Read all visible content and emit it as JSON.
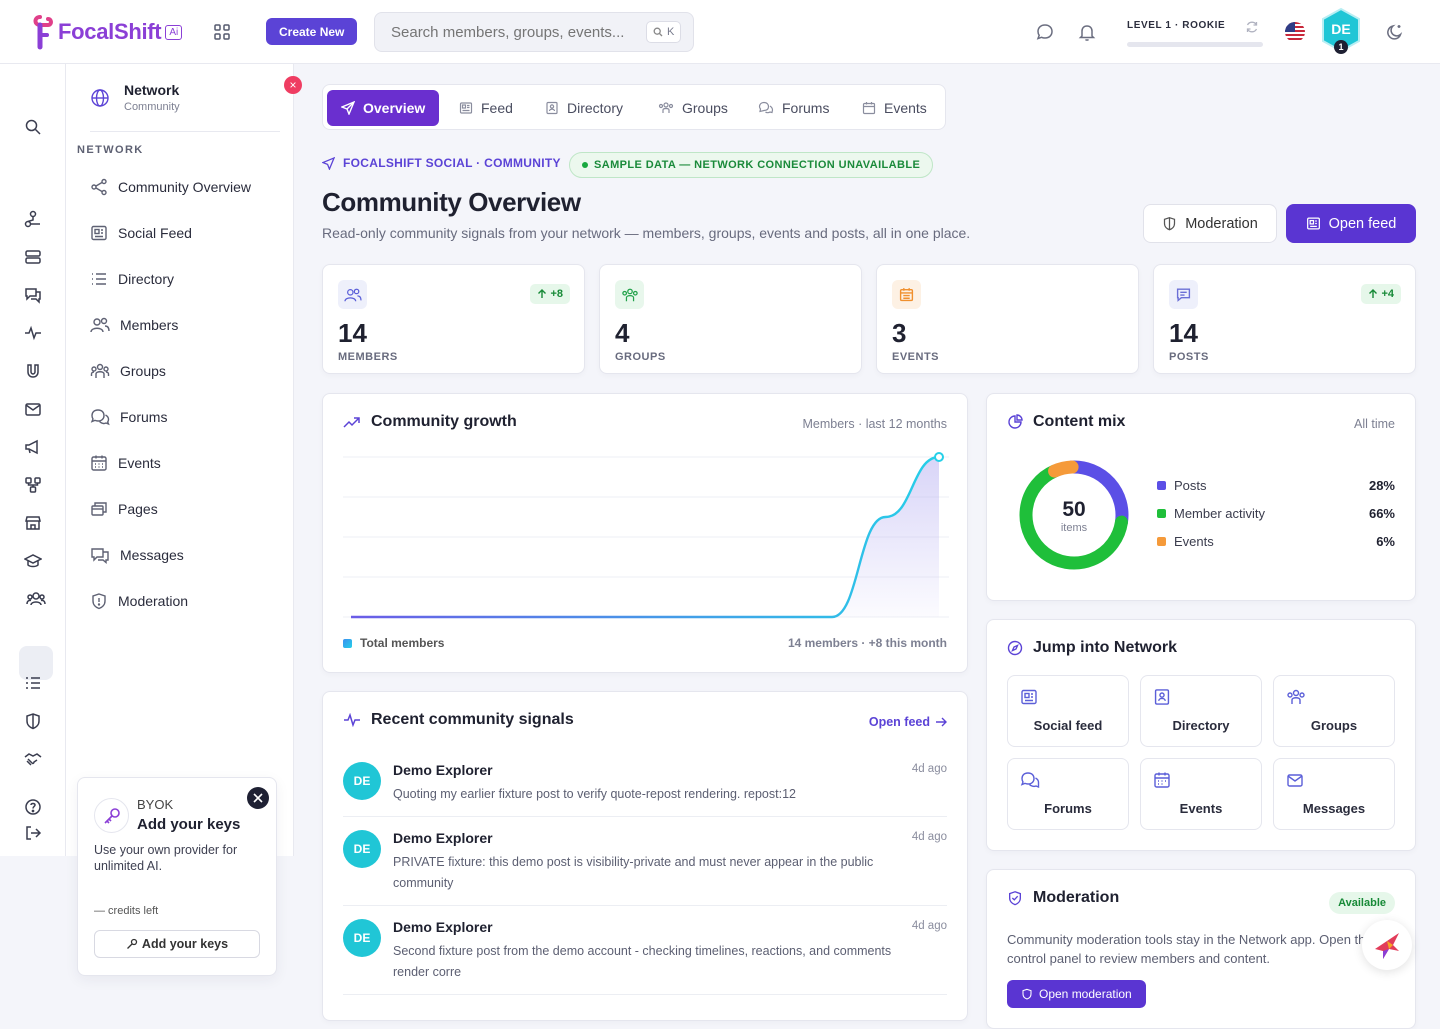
{
  "brand": {
    "name": "FocalShift",
    "badge": "Ai"
  },
  "topbar": {
    "create_label": "Create New",
    "search_placeholder": "Search members, groups, events...",
    "search_shortcut": "K",
    "level_label": "LEVEL 1 · ROOKIE",
    "level_progress": 0,
    "avatar_initials": "DE",
    "avatar_level": "1"
  },
  "sidebar": {
    "title": "Network",
    "subtitle": "Community",
    "close_glyph": "×",
    "section_label": "NETWORK",
    "items": [
      {
        "label": "Community Overview",
        "icon": "share-icon"
      },
      {
        "label": "Social Feed",
        "icon": "newspaper-icon"
      },
      {
        "label": "Directory",
        "icon": "list-icon"
      },
      {
        "label": "Members",
        "icon": "users-icon"
      },
      {
        "label": "Groups",
        "icon": "group-icon"
      },
      {
        "label": "Forums",
        "icon": "chat-bubbles-icon"
      },
      {
        "label": "Events",
        "icon": "calendar-icon"
      },
      {
        "label": "Pages",
        "icon": "pages-icon"
      },
      {
        "label": "Messages",
        "icon": "messages-icon"
      },
      {
        "label": "Moderation",
        "icon": "shield-icon"
      }
    ]
  },
  "byok": {
    "label": "BYOK",
    "title": "Add your keys",
    "description": "Use your own provider for unlimited AI.",
    "credits": "— credits left",
    "button": "Add your keys"
  },
  "tabs": [
    {
      "label": "Overview",
      "active": true
    },
    {
      "label": "Feed"
    },
    {
      "label": "Directory"
    },
    {
      "label": "Groups"
    },
    {
      "label": "Forums"
    },
    {
      "label": "Events"
    }
  ],
  "header": {
    "crumb": "FOCALSHIFT SOCIAL · COMMUNITY",
    "sample_badge": "SAMPLE DATA — NETWORK CONNECTION UNAVAILABLE",
    "title": "Community Overview",
    "subtitle": "Read-only community signals from your network — members, groups, events and posts, all in one place.",
    "moderation_button": "Moderation",
    "open_feed_button": "Open feed"
  },
  "stats": [
    {
      "value": "14",
      "label": "MEMBERS",
      "delta": "+8",
      "color": "#5b5fd8",
      "bg": "#eef0fb"
    },
    {
      "value": "4",
      "label": "GROUPS",
      "delta": "",
      "color": "#22a24a",
      "bg": "#e8f7ec"
    },
    {
      "value": "3",
      "label": "EVENTS",
      "delta": "",
      "color": "#f0902e",
      "bg": "#fdf1e4"
    },
    {
      "value": "14",
      "label": "POSTS",
      "delta": "+4",
      "color": "#6b6fd6",
      "bg": "#eef0fb"
    }
  ],
  "growth": {
    "title": "Community growth",
    "meta": "Members · last 12 months",
    "legend": "Total members",
    "footer": "14 members · +8 this month"
  },
  "content_mix": {
    "title": "Content mix",
    "meta": "All time",
    "center_value": "50",
    "center_label": "items"
  },
  "chart_data": [
    {
      "type": "line",
      "series": [
        {
          "name": "Total members",
          "values": [
            6,
            6,
            6,
            6,
            6,
            6,
            6,
            6,
            6,
            6,
            11,
            14
          ]
        }
      ],
      "ylim": [
        6,
        14
      ],
      "grid": true,
      "legend": "bottom-left",
      "colors": [
        "#3b8ff0",
        "#25d0e8"
      ]
    },
    {
      "type": "pie",
      "categories": [
        "Posts",
        "Member activity",
        "Events"
      ],
      "values": [
        28,
        66,
        6
      ],
      "labels": [
        "28%",
        "66%",
        "6%"
      ],
      "colors": [
        "#5b4fe6",
        "#1fbf3a",
        "#f59a3a"
      ],
      "legend": "right"
    }
  ],
  "signals": {
    "title": "Recent community signals",
    "link": "Open feed",
    "items": [
      {
        "initials": "DE",
        "name": "Demo Explorer",
        "time": "4d ago",
        "text": "Quoting my earlier fixture post to verify quote-repost rendering. repost:12"
      },
      {
        "initials": "DE",
        "name": "Demo Explorer",
        "time": "4d ago",
        "text": "PRIVATE fixture: this demo post is visibility-private and must never appear in the public community"
      },
      {
        "initials": "DE",
        "name": "Demo Explorer",
        "time": "4d ago",
        "text": "Second fixture post from the demo account - checking timelines, reactions, and comments render corre"
      }
    ]
  },
  "jump": {
    "title": "Jump into Network",
    "items": [
      {
        "label": "Social feed",
        "icon": "newspaper-icon"
      },
      {
        "label": "Directory",
        "icon": "contact-card-icon"
      },
      {
        "label": "Groups",
        "icon": "group-icon"
      },
      {
        "label": "Forums",
        "icon": "chat-bubbles-icon"
      },
      {
        "label": "Events",
        "icon": "calendar-icon"
      },
      {
        "label": "Messages",
        "icon": "envelope-icon"
      }
    ]
  },
  "moderation": {
    "title": "Moderation",
    "badge": "Available",
    "text": "Community moderation tools stay in the Network app. Open the control panel to review members and content.",
    "button": "Open moderation"
  },
  "colors": {
    "accent": "#5a35d2",
    "tab_active": "#6a2fcf",
    "cyan": "#20c6d6",
    "success": "#178a37"
  }
}
